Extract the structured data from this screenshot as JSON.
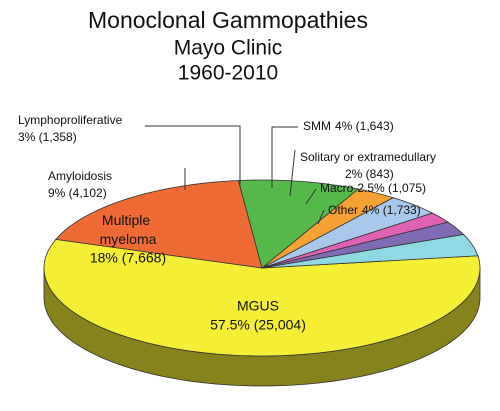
{
  "chart_data": {
    "type": "pie",
    "title": "Monoclonal Gammopathies",
    "subtitle": [
      "Mayo Clinic",
      "1960-2010"
    ],
    "categories": [
      "MGUS",
      "Multiple myeloma",
      "Amyloidosis",
      "Lymphoproliferative",
      "SMM",
      "Solitary or extramedullary",
      "Macro",
      "Other"
    ],
    "values": [
      57.5,
      18,
      9,
      3,
      4,
      2,
      2.5,
      4
    ],
    "value_labels": [
      "57.5% (25,004)",
      "18% (7,668)",
      "9% (4,102)",
      "3% (1,358)",
      "4% (1,643)",
      "2% (843)",
      "2.5% (1,075)",
      "4% (1,733)"
    ],
    "colors": [
      "#f4ef34",
      "#ef6a34",
      "#55b94c",
      "#f5a233",
      "#a9c9ec",
      "#e062b4",
      "#7f6bb2",
      "#8fd9e2"
    ]
  }
}
